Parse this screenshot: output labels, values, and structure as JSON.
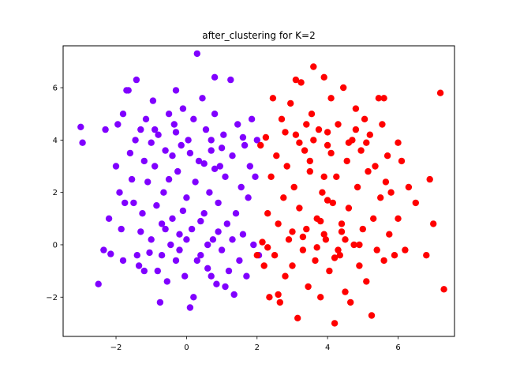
{
  "chart_data": {
    "type": "scatter",
    "title": "after_clustering for K=2",
    "xlabel": "",
    "ylabel": "",
    "xlim": [
      -3.5,
      7.6
    ],
    "ylim": [
      -3.5,
      7.6
    ],
    "xticks": [
      -2,
      0,
      2,
      4,
      6
    ],
    "yticks": [
      -2,
      0,
      2,
      4,
      6
    ],
    "grid": false,
    "legend": "none",
    "series": [
      {
        "color": "#8000ff",
        "points": [
          [
            -3.0,
            4.5
          ],
          [
            -2.95,
            3.9
          ],
          [
            -2.5,
            -1.5
          ],
          [
            -2.35,
            -0.2
          ],
          [
            -2.2,
            1.0
          ],
          [
            -2.15,
            -0.35
          ],
          [
            -2.0,
            3.0
          ],
          [
            -1.95,
            4.6
          ],
          [
            -1.9,
            2.0
          ],
          [
            -1.85,
            0.6
          ],
          [
            -1.8,
            -0.6
          ],
          [
            -1.75,
            1.6
          ],
          [
            -1.7,
            5.9
          ],
          [
            -1.65,
            5.9
          ],
          [
            -1.6,
            3.5
          ],
          [
            -1.55,
            2.5
          ],
          [
            -1.5,
            1.6
          ],
          [
            -1.45,
            4.0
          ],
          [
            -1.42,
            6.3
          ],
          [
            -1.4,
            -0.4
          ],
          [
            -1.35,
            -0.8
          ],
          [
            -1.3,
            0.5
          ],
          [
            -1.25,
            1.2
          ],
          [
            -1.2,
            3.2
          ],
          [
            -1.15,
            4.8
          ],
          [
            -1.1,
            2.4
          ],
          [
            -1.05,
            -0.3
          ],
          [
            -1.0,
            0.2
          ],
          [
            -0.95,
            5.5
          ],
          [
            -0.9,
            3.0
          ],
          [
            -0.85,
            1.5
          ],
          [
            -0.82,
            -1.0
          ],
          [
            -0.8,
            4.2
          ],
          [
            -0.75,
            -2.2
          ],
          [
            -0.7,
            0.8
          ],
          [
            -0.65,
            2.0
          ],
          [
            -0.6,
            3.6
          ],
          [
            -0.55,
            -1.4
          ],
          [
            -0.5,
            5.0
          ],
          [
            -0.45,
            0.0
          ],
          [
            -0.4,
            1.0
          ],
          [
            -0.35,
            4.6
          ],
          [
            -0.3,
            -0.6
          ],
          [
            -0.25,
            2.8
          ],
          [
            -0.2,
            0.4
          ],
          [
            -0.15,
            3.8
          ],
          [
            -0.1,
            5.2
          ],
          [
            -0.05,
            -1.2
          ],
          [
            0.0,
            1.8
          ],
          [
            0.05,
            4.0
          ],
          [
            0.1,
            -2.4
          ],
          [
            0.15,
            0.6
          ],
          [
            0.2,
            -2.0
          ],
          [
            0.25,
            2.4
          ],
          [
            0.3,
            7.3
          ],
          [
            0.35,
            3.2
          ],
          [
            0.4,
            -0.4
          ],
          [
            0.45,
            5.6
          ],
          [
            0.5,
            1.2
          ],
          [
            0.55,
            4.4
          ],
          [
            0.6,
            -0.9
          ],
          [
            0.65,
            2.0
          ],
          [
            0.7,
            3.6
          ],
          [
            0.75,
            0.2
          ],
          [
            0.8,
            5.0
          ],
          [
            0.85,
            -1.5
          ],
          [
            0.9,
            1.6
          ],
          [
            0.95,
            3.0
          ],
          [
            1.0,
            -0.2
          ],
          [
            1.05,
            4.2
          ],
          [
            1.1,
            2.6
          ],
          [
            1.15,
            0.8
          ],
          [
            1.2,
            -1.0
          ],
          [
            1.25,
            6.3
          ],
          [
            1.3,
            3.4
          ],
          [
            1.35,
            -1.9
          ],
          [
            1.4,
            1.2
          ],
          [
            1.45,
            4.6
          ],
          [
            1.5,
            -0.6
          ],
          [
            1.55,
            2.2
          ],
          [
            1.6,
            0.4
          ],
          [
            1.65,
            3.8
          ],
          [
            1.7,
            -1.2
          ],
          [
            1.75,
            1.8
          ],
          [
            1.8,
            3.0
          ],
          [
            1.85,
            4.8
          ],
          [
            1.9,
            0.0
          ],
          [
            1.95,
            2.6
          ],
          [
            2.0,
            4.0
          ],
          [
            2.05,
            -0.4
          ],
          [
            -1.8,
            5.0
          ],
          [
            -0.9,
            4.4
          ],
          [
            -0.4,
            3.4
          ],
          [
            0.2,
            4.8
          ],
          [
            0.7,
            4.0
          ],
          [
            -0.6,
            0.6
          ],
          [
            0.0,
            0.2
          ],
          [
            0.4,
            0.9
          ],
          [
            -0.2,
            -0.2
          ],
          [
            0.9,
            0.5
          ],
          [
            -1.0,
            3.9
          ],
          [
            -0.3,
            4.3
          ],
          [
            0.5,
            3.1
          ],
          [
            1.0,
            3.7
          ],
          [
            -0.7,
            -0.4
          ],
          [
            0.3,
            -0.6
          ],
          [
            1.3,
            0.2
          ],
          [
            -1.3,
            4.4
          ],
          [
            0.1,
            3.5
          ],
          [
            0.6,
            0.0
          ],
          [
            -0.5,
            2.5
          ],
          [
            0.8,
            2.9
          ],
          [
            -0.1,
            1.3
          ],
          [
            1.6,
            4.1
          ],
          [
            0.8,
            6.4
          ],
          [
            -0.3,
            5.9
          ],
          [
            -2.3,
            4.4
          ],
          [
            1.1,
            -1.6
          ],
          [
            0.7,
            -1.2
          ],
          [
            -1.2,
            -1.0
          ]
        ]
      },
      {
        "color": "#ff0000",
        "points": [
          [
            2.1,
            3.8
          ],
          [
            2.15,
            0.1
          ],
          [
            2.2,
            -0.8
          ],
          [
            2.25,
            4.1
          ],
          [
            2.3,
            1.2
          ],
          [
            2.35,
            -2.0
          ],
          [
            2.4,
            2.6
          ],
          [
            2.45,
            5.6
          ],
          [
            2.5,
            -0.4
          ],
          [
            2.55,
            3.4
          ],
          [
            2.6,
            0.8
          ],
          [
            2.65,
            -2.2
          ],
          [
            2.7,
            4.8
          ],
          [
            2.75,
            1.8
          ],
          [
            2.8,
            -1.2
          ],
          [
            2.85,
            3.0
          ],
          [
            2.9,
            0.2
          ],
          [
            2.95,
            5.4
          ],
          [
            3.0,
            -0.8
          ],
          [
            3.05,
            2.2
          ],
          [
            3.1,
            4.2
          ],
          [
            3.15,
            -2.8
          ],
          [
            3.2,
            1.4
          ],
          [
            3.25,
            6.2
          ],
          [
            3.3,
            -0.2
          ],
          [
            3.35,
            3.6
          ],
          [
            3.4,
            0.6
          ],
          [
            3.45,
            -1.6
          ],
          [
            3.5,
            2.8
          ],
          [
            3.55,
            5.0
          ],
          [
            3.6,
            6.8
          ],
          [
            3.65,
            -0.6
          ],
          [
            3.7,
            1.0
          ],
          [
            3.75,
            4.4
          ],
          [
            3.8,
            -2.0
          ],
          [
            3.85,
            2.0
          ],
          [
            3.9,
            6.4
          ],
          [
            3.95,
            0.2
          ],
          [
            4.0,
            3.8
          ],
          [
            4.05,
            -1.0
          ],
          [
            4.1,
            5.6
          ],
          [
            4.15,
            1.6
          ],
          [
            4.2,
            -3.0
          ],
          [
            4.25,
            2.6
          ],
          [
            4.3,
            4.6
          ],
          [
            4.35,
            -0.4
          ],
          [
            4.4,
            0.8
          ],
          [
            4.45,
            6.0
          ],
          [
            4.5,
            -1.8
          ],
          [
            4.55,
            3.2
          ],
          [
            4.6,
            1.4
          ],
          [
            4.65,
            -2.2
          ],
          [
            4.7,
            4.0
          ],
          [
            4.75,
            0.0
          ],
          [
            4.8,
            5.2
          ],
          [
            4.85,
            2.2
          ],
          [
            4.9,
            -0.8
          ],
          [
            4.95,
            3.6
          ],
          [
            5.0,
            0.6
          ],
          [
            5.05,
            4.8
          ],
          [
            5.1,
            -1.4
          ],
          [
            5.15,
            2.8
          ],
          [
            5.2,
            4.2
          ],
          [
            5.25,
            -2.7
          ],
          [
            5.3,
            1.0
          ],
          [
            5.35,
            3.0
          ],
          [
            5.4,
            -0.2
          ],
          [
            5.45,
            5.6
          ],
          [
            5.5,
            1.8
          ],
          [
            5.55,
            4.6
          ],
          [
            5.6,
            -0.6
          ],
          [
            5.65,
            2.4
          ],
          [
            5.7,
            3.4
          ],
          [
            5.75,
            0.4
          ],
          [
            5.8,
            2.0
          ],
          [
            5.9,
            -0.4
          ],
          [
            6.0,
            1.0
          ],
          [
            6.1,
            3.2
          ],
          [
            6.2,
            -0.2
          ],
          [
            6.3,
            2.2
          ],
          [
            6.5,
            1.6
          ],
          [
            6.8,
            -0.4
          ],
          [
            6.9,
            2.5
          ],
          [
            7.0,
            0.8
          ],
          [
            7.2,
            5.8
          ],
          [
            7.3,
            -1.7
          ],
          [
            3.6,
            4.0
          ],
          [
            4.1,
            3.5
          ],
          [
            3.9,
            0.4
          ],
          [
            4.3,
            -0.2
          ],
          [
            3.4,
            4.6
          ],
          [
            4.6,
            3.9
          ],
          [
            3.7,
            -0.1
          ],
          [
            4.4,
            0.5
          ],
          [
            3.2,
            3.9
          ],
          [
            4.0,
            4.3
          ],
          [
            3.8,
            0.9
          ],
          [
            4.2,
            -0.5
          ],
          [
            3.3,
            0.3
          ],
          [
            4.8,
            4.4
          ],
          [
            4.5,
            0.2
          ],
          [
            3.5,
            3.2
          ],
          [
            2.8,
            4.3
          ],
          [
            5.1,
            3.9
          ],
          [
            3.0,
            0.5
          ],
          [
            4.9,
            0.0
          ],
          [
            3.9,
            2.6
          ],
          [
            4.0,
            1.7
          ],
          [
            2.6,
            -1.9
          ],
          [
            5.6,
            5.6
          ],
          [
            6.0,
            3.9
          ],
          [
            3.1,
            6.3
          ],
          [
            2.0,
            -0.4
          ],
          [
            2.3,
            -0.1
          ]
        ]
      }
    ]
  }
}
